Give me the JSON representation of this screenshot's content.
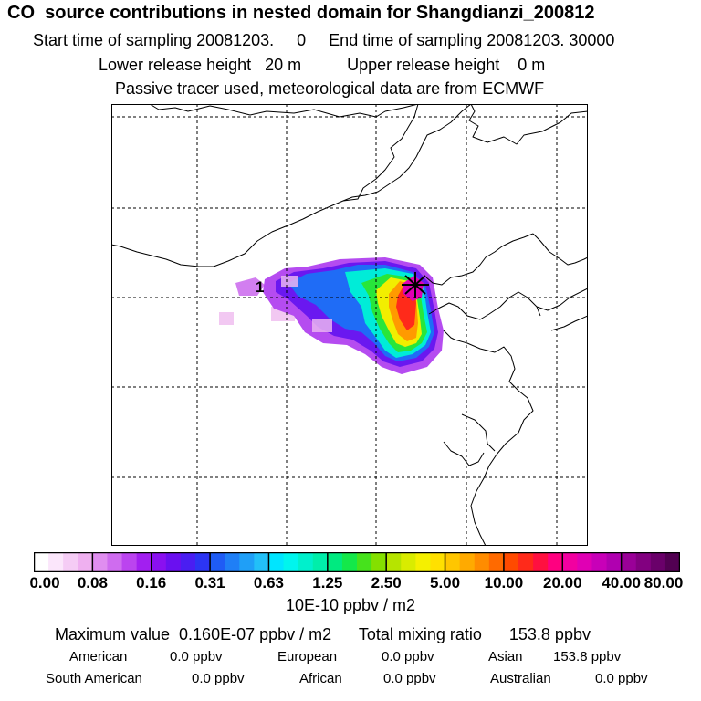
{
  "header": {
    "title": "CO  source contributions in nested domain for Shangdianzi_200812",
    "sampling": "Start time of sampling 20081203.     0     End time of sampling 20081203. 30000",
    "heights": "Lower release height   20 m          Upper release height    0 m",
    "tracer": "Passive tracer used, meteorological data are from ECMWF"
  },
  "map": {
    "receptor_label": "1"
  },
  "colorbar": {
    "ticks": [
      "0.00",
      "0.08",
      "0.16",
      "0.31",
      "0.63",
      "1.25",
      "2.50",
      "5.00",
      "10.00",
      "20.00",
      "40.00",
      "80.00"
    ],
    "colors": [
      "#ffffff",
      "#fbe6fb",
      "#f5ccf5",
      "#efb0f0",
      "#e08ef0",
      "#cf6cef",
      "#bb44ef",
      "#a21ff0",
      "#8a10f0",
      "#6a10f0",
      "#4a1ef2",
      "#2c35f3",
      "#1f5cf5",
      "#1f7ff6",
      "#1f9ff7",
      "#22c0f8",
      "#00e5ff",
      "#00f5ee",
      "#00f0cc",
      "#00eeaa",
      "#00ea80",
      "#14e84a",
      "#46e21c",
      "#84e000",
      "#b6e400",
      "#d9ec00",
      "#f5f000",
      "#ffe000",
      "#ffc600",
      "#ffaa00",
      "#ff8c00",
      "#ff6a00",
      "#ff4a00",
      "#ff2a1a",
      "#ff1040",
      "#ff0080",
      "#f200a0",
      "#e000b4",
      "#c800b8",
      "#b000b0",
      "#9a0098",
      "#820080",
      "#6a006a",
      "#520052"
    ],
    "units": "10E-10 ppbv / m2"
  },
  "summary": {
    "max_label": "Maximum value  0.160E-07 ppbv / m2      Total mixing ratio      153.8 ppbv",
    "regions": [
      {
        "name": "American",
        "value": "0.0 ppbv"
      },
      {
        "name": "European",
        "value": "0.0 ppbv"
      },
      {
        "name": "Asian",
        "value": "153.8 ppbv"
      },
      {
        "name": "South American",
        "value": "0.0 ppbv"
      },
      {
        "name": "African",
        "value": "0.0 ppbv"
      },
      {
        "name": "Australian",
        "value": "0.0 ppbv"
      }
    ]
  }
}
